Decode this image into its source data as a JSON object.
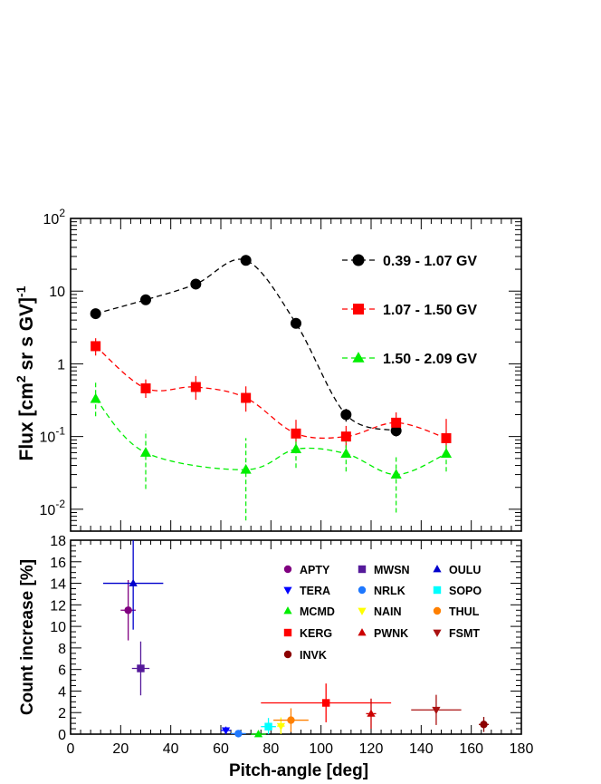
{
  "chart_data": [
    {
      "type": "scatter",
      "panel": "top",
      "ylabel_main": "Flux [cm",
      "ylabel_sup1": "2",
      "ylabel_mid": " sr s GV]",
      "ylabel_sup2": "-1",
      "yscale": "log",
      "xlim": [
        0,
        180
      ],
      "ylim": [
        0.005,
        100
      ],
      "ytick_labels": [
        {
          "base": "10",
          "exp": "-2",
          "value": 0.01
        },
        {
          "base": "10",
          "exp": "-1",
          "value": 0.1
        },
        {
          "base": "1",
          "exp": "",
          "value": 1
        },
        {
          "base": "10",
          "exp": "",
          "value": 10
        },
        {
          "base": "10",
          "exp": "2",
          "value": 100
        }
      ],
      "legend_position": "right",
      "series": [
        {
          "name": "0.39 - 1.07 GV",
          "color": "#000000",
          "marker": "circle",
          "x": [
            10,
            30,
            50,
            70,
            90,
            110,
            130
          ],
          "y": [
            4.9,
            7.6,
            12.5,
            26.5,
            3.6,
            0.2,
            0.12
          ],
          "yerr_low": [
            0,
            0,
            0,
            0,
            0,
            0.04,
            0.02
          ],
          "yerr_high": [
            0,
            0,
            0,
            0,
            0,
            0.04,
            0.02
          ]
        },
        {
          "name": "1.07 - 1.50 GV",
          "color": "#ff0000",
          "marker": "square",
          "x": [
            10,
            30,
            50,
            70,
            90,
            110,
            130,
            150
          ],
          "y": [
            1.75,
            0.46,
            0.48,
            0.34,
            0.11,
            0.1,
            0.155,
            0.095
          ],
          "yerr_low": [
            0.45,
            0.12,
            0.16,
            0.12,
            0.045,
            0.03,
            0.05,
            0.035
          ],
          "yerr_high": [
            0.5,
            0.15,
            0.2,
            0.15,
            0.06,
            0.04,
            0.06,
            0.08
          ]
        },
        {
          "name": "1.50 - 2.09 GV",
          "color": "#00ee00",
          "marker": "triangle-up",
          "x": [
            10,
            30,
            70,
            90,
            110,
            130,
            150
          ],
          "y": [
            0.33,
            0.06,
            0.035,
            0.067,
            0.058,
            0.03,
            0.058
          ],
          "yerr_low": [
            0.14,
            0.041,
            0.028,
            0.03,
            0.025,
            0.021,
            0.025
          ],
          "yerr_high": [
            0.24,
            0.06,
            0.06,
            0.035,
            0.03,
            0.025,
            0.025
          ]
        }
      ]
    },
    {
      "type": "scatter",
      "panel": "bottom",
      "title": "",
      "xlabel": "Pitch-angle [deg]",
      "ylabel": "Count increase [%]",
      "xlim": [
        0,
        180
      ],
      "ylim": [
        0,
        18
      ],
      "xticks": [
        0,
        20,
        40,
        60,
        80,
        100,
        120,
        140,
        160,
        180
      ],
      "yticks": [
        0,
        2,
        4,
        6,
        8,
        10,
        12,
        14,
        16,
        18
      ],
      "legend_position": "top-right",
      "series": [
        {
          "name": "APTY",
          "color": "#800080",
          "marker": "circle",
          "x": 23,
          "y": 11.5,
          "xerr": 3,
          "yerr": 2.8
        },
        {
          "name": "MWSN",
          "color": "#551a9a",
          "marker": "square",
          "x": 28,
          "y": 6.1,
          "xerr": 3.5,
          "yerr": 2.5
        },
        {
          "name": "OULU",
          "color": "#0000cc",
          "marker": "triangle-up",
          "x": 25,
          "y": 14.0,
          "xerr": 12,
          "yerr": 4.3
        },
        {
          "name": "TERA",
          "color": "#0000ff",
          "marker": "triangle-down",
          "x": 62,
          "y": 0.35,
          "xerr": 2,
          "yerr": 0.35
        },
        {
          "name": "NRLK",
          "color": "#1e78ff",
          "marker": "circle",
          "x": 67,
          "y": 0.05,
          "xerr": 3,
          "yerr": 0.1
        },
        {
          "name": "SOPO",
          "color": "#00ffff",
          "marker": "square",
          "x": 79,
          "y": 0.7,
          "xerr": 3,
          "yerr": 0.8
        },
        {
          "name": "MCMD",
          "color": "#00ee00",
          "marker": "triangle-up",
          "x": 75,
          "y": 0.0,
          "xerr": 3,
          "yerr": 0.3
        },
        {
          "name": "NAIN",
          "color": "#ffff00",
          "marker": "triangle-down",
          "x": 84,
          "y": 0.75,
          "xerr": 1.5,
          "yerr": 0.8
        },
        {
          "name": "THUL",
          "color": "#ff8000",
          "marker": "circle",
          "x": 88,
          "y": 1.3,
          "xerr": 7,
          "yerr": 1.1
        },
        {
          "name": "KERG",
          "color": "#ff0000",
          "marker": "square",
          "x": 102,
          "y": 2.9,
          "xerr": 26,
          "yerr": 1.8
        },
        {
          "name": "PWNK",
          "color": "#cc0000",
          "marker": "triangle-up",
          "x": 120,
          "y": 1.9,
          "xerr": 2,
          "yerr": 1.4
        },
        {
          "name": "FSMT",
          "color": "#aa1111",
          "marker": "triangle-down",
          "x": 146,
          "y": 2.25,
          "xerr": 10,
          "yerr": 1.4
        },
        {
          "name": "INVK",
          "color": "#8b0000",
          "marker": "circle",
          "x": 165,
          "y": 0.9,
          "xerr": 2,
          "yerr": 0.7
        }
      ]
    }
  ]
}
